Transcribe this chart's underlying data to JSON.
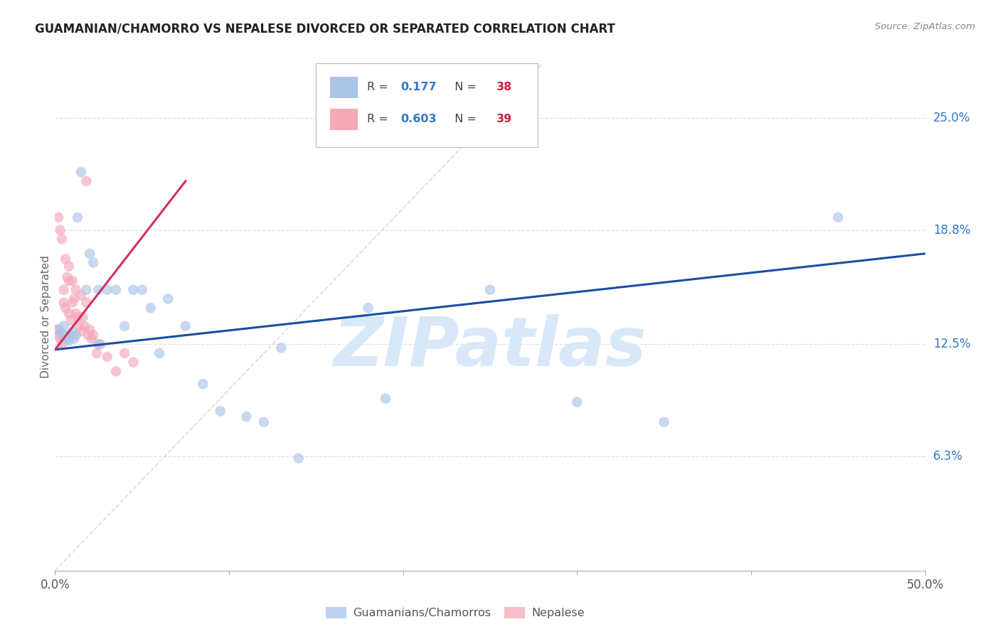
{
  "title": "GUAMANIAN/CHAMORRO VS NEPALESE DIVORCED OR SEPARATED CORRELATION CHART",
  "source": "Source: ZipAtlas.com",
  "ylabel_text": "Divorced or Separated",
  "xlim": [
    0.0,
    0.5
  ],
  "ylim": [
    0.0,
    0.28
  ],
  "x_tick_vals": [
    0.0,
    0.1,
    0.2,
    0.3,
    0.4,
    0.5
  ],
  "x_tick_labels": [
    "0.0%",
    "",
    "",
    "",
    "",
    "50.0%"
  ],
  "y_tick_vals": [
    0.063,
    0.125,
    0.188,
    0.25
  ],
  "y_tick_labels": [
    "6.3%",
    "12.5%",
    "18.8%",
    "25.0%"
  ],
  "blue_color": "#aac4e8",
  "pink_color": "#f4a8b8",
  "blue_line_color": "#1a4fa0",
  "pink_line_color": "#d03060",
  "diagonal_color": "#cccccc",
  "watermark_color": "#d8e8f8",
  "grid_color": "#e0e0e0",
  "R_blue": "0.177",
  "N_blue": "38",
  "R_pink": "0.603",
  "N_pink": "39",
  "blue_scatter_x": [
    0.002,
    0.004,
    0.005,
    0.006,
    0.007,
    0.008,
    0.009,
    0.01,
    0.011,
    0.012,
    0.013,
    0.015,
    0.018,
    0.02,
    0.022,
    0.025,
    0.03,
    0.035,
    0.04,
    0.045,
    0.05,
    0.055,
    0.065,
    0.075,
    0.085,
    0.095,
    0.11,
    0.12,
    0.13,
    0.14,
    0.18,
    0.19,
    0.25,
    0.3,
    0.35,
    0.45,
    0.025,
    0.06
  ],
  "blue_scatter_y": [
    0.133,
    0.131,
    0.135,
    0.13,
    0.128,
    0.127,
    0.13,
    0.132,
    0.128,
    0.13,
    0.195,
    0.22,
    0.155,
    0.175,
    0.17,
    0.155,
    0.155,
    0.155,
    0.135,
    0.155,
    0.155,
    0.145,
    0.15,
    0.135,
    0.103,
    0.088,
    0.085,
    0.082,
    0.123,
    0.062,
    0.145,
    0.095,
    0.155,
    0.093,
    0.082,
    0.195,
    0.125,
    0.12
  ],
  "pink_scatter_x": [
    0.001,
    0.002,
    0.003,
    0.004,
    0.005,
    0.005,
    0.006,
    0.007,
    0.008,
    0.008,
    0.009,
    0.01,
    0.011,
    0.012,
    0.013,
    0.014,
    0.015,
    0.016,
    0.017,
    0.018,
    0.019,
    0.02,
    0.021,
    0.022,
    0.024,
    0.026,
    0.03,
    0.035,
    0.04,
    0.045,
    0.002,
    0.003,
    0.004,
    0.006,
    0.008,
    0.01,
    0.012,
    0.015,
    0.018
  ],
  "pink_scatter_y": [
    0.133,
    0.13,
    0.128,
    0.125,
    0.155,
    0.148,
    0.145,
    0.162,
    0.16,
    0.142,
    0.138,
    0.148,
    0.15,
    0.142,
    0.14,
    0.135,
    0.132,
    0.14,
    0.135,
    0.215,
    0.13,
    0.133,
    0.128,
    0.13,
    0.12,
    0.125,
    0.118,
    0.11,
    0.12,
    0.115,
    0.195,
    0.188,
    0.183,
    0.172,
    0.168,
    0.16,
    0.155,
    0.152,
    0.148
  ],
  "blue_line_x": [
    0.0,
    0.5
  ],
  "blue_line_y": [
    0.122,
    0.175
  ],
  "pink_line_x": [
    0.0,
    0.075
  ],
  "pink_line_y": [
    0.122,
    0.215
  ]
}
